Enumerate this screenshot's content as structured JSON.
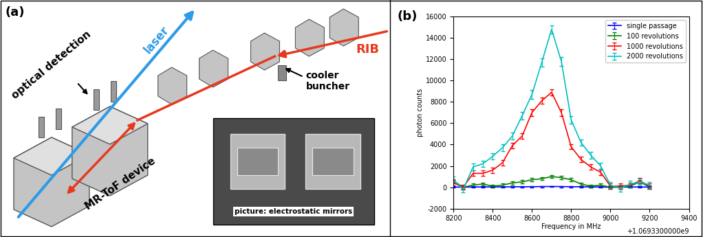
{
  "diagram": {
    "panel_label": "(a)",
    "laser": "laser",
    "beam": "RIB",
    "buncher": "cooler\nbuncher",
    "detection": "optical detection",
    "device": "MR-ToF device",
    "inset_caption": "picture: electrostatic mirrors"
  },
  "chart_data": {
    "type": "line",
    "xlabel": "Frequency in MHz",
    "ylabel": "photon counts",
    "annotations": [
      {
        "text": "(b)"
      },
      {
        "text": "+1.0693300000e9"
      }
    ],
    "x": [
      8200,
      8250,
      8300,
      8350,
      8400,
      8450,
      8500,
      8550,
      8600,
      8650,
      8700,
      8750,
      8800,
      8850,
      8900,
      8950,
      9000,
      9050,
      9100,
      9150,
      9200
    ],
    "series": [
      {
        "name": "single passage",
        "color": "#0000ff",
        "values": [
          20,
          10,
          20,
          30,
          20,
          30,
          40,
          40,
          50,
          60,
          70,
          60,
          50,
          40,
          30,
          20,
          10,
          10,
          20,
          30,
          10
        ],
        "errors": [
          60,
          60,
          60,
          60,
          60,
          60,
          60,
          60,
          60,
          60,
          60,
          60,
          60,
          60,
          60,
          60,
          60,
          60,
          60,
          60,
          60
        ]
      },
      {
        "name": "100 revolutions",
        "color": "#008000",
        "values": [
          600,
          0,
          200,
          300,
          100,
          200,
          400,
          500,
          700,
          800,
          1000,
          900,
          700,
          300,
          100,
          200,
          0,
          0,
          100,
          500,
          0
        ],
        "errors": [
          150,
          150,
          150,
          150,
          150,
          150,
          150,
          150,
          150,
          150,
          150,
          150,
          150,
          150,
          150,
          150,
          150,
          150,
          150,
          150,
          150
        ]
      },
      {
        "name": "1000 revolutions",
        "color": "#ff0000",
        "values": [
          400,
          0,
          1300,
          1300,
          1600,
          2300,
          3900,
          4800,
          7000,
          8100,
          8900,
          7000,
          3800,
          2600,
          1900,
          1400,
          100,
          100,
          200,
          600,
          100
        ],
        "errors": [
          250,
          250,
          250,
          250,
          250,
          250,
          250,
          250,
          300,
          300,
          300,
          300,
          250,
          250,
          250,
          250,
          250,
          250,
          250,
          250,
          250
        ]
      },
      {
        "name": "2000 revolutions",
        "color": "#00bfbf",
        "values": [
          700,
          -200,
          1900,
          2200,
          2900,
          3700,
          4800,
          6700,
          8700,
          11700,
          14800,
          11800,
          6300,
          4200,
          3000,
          2000,
          200,
          -100,
          300,
          500,
          200
        ],
        "errors": [
          300,
          300,
          300,
          300,
          300,
          300,
          350,
          350,
          400,
          400,
          400,
          400,
          350,
          300,
          300,
          300,
          300,
          300,
          300,
          300,
          300
        ]
      }
    ],
    "xlim": [
      8200,
      9400
    ],
    "xticks": [
      8200,
      8400,
      8600,
      8800,
      9000,
      9200,
      9400
    ],
    "ylim": [
      -2000,
      16000
    ],
    "yticks": [
      -2000,
      0,
      2000,
      4000,
      6000,
      8000,
      10000,
      12000,
      14000,
      16000
    ],
    "grid": false,
    "legend": "upper right"
  }
}
